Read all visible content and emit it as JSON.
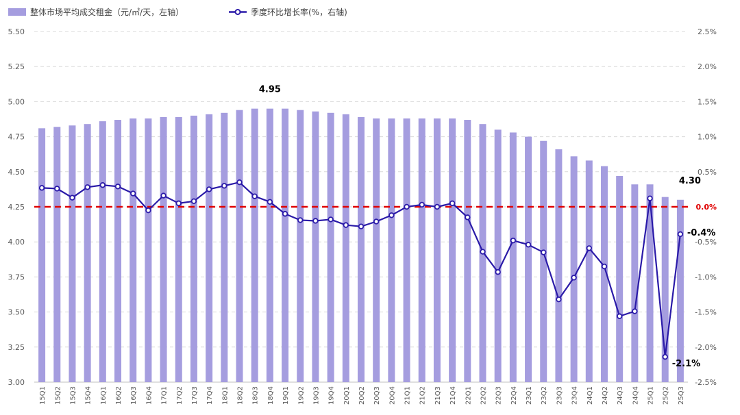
{
  "chart_data": {
    "type": "bar+line",
    "legend": {
      "placement": "top-left",
      "bar_label": "整体市场平均成交租金（元/㎡/天，左轴）",
      "line_label": "季度环比增长率(%，右轴)"
    },
    "categories": [
      "15Q1",
      "15Q2",
      "15Q3",
      "15Q4",
      "16Q1",
      "16Q2",
      "16Q3",
      "16Q4",
      "17Q1",
      "17Q2",
      "17Q3",
      "17Q4",
      "18Q1",
      "18Q2",
      "18Q3",
      "18Q4",
      "19Q1",
      "19Q2",
      "19Q3",
      "19Q4",
      "20Q1",
      "20Q2",
      "20Q3",
      "20Q4",
      "21Q1",
      "21Q2",
      "21Q3",
      "21Q4",
      "22Q1",
      "22Q2",
      "22Q3",
      "22Q4",
      "23Q1",
      "23Q2",
      "23Q3",
      "23Q4",
      "24Q1",
      "24Q2",
      "24Q3",
      "24Q4",
      "25Q1",
      "25Q2",
      "25Q3"
    ],
    "series": [
      {
        "name": "整体市场平均成交租金（元/㎡/天，左轴）",
        "type": "bar",
        "axis": "left",
        "color": "#a59ddf",
        "values": [
          4.81,
          4.82,
          4.83,
          4.84,
          4.86,
          4.87,
          4.88,
          4.88,
          4.89,
          4.89,
          4.9,
          4.91,
          4.92,
          4.94,
          4.95,
          4.95,
          4.95,
          4.94,
          4.93,
          4.92,
          4.91,
          4.89,
          4.88,
          4.88,
          4.88,
          4.88,
          4.88,
          4.88,
          4.87,
          4.84,
          4.8,
          4.78,
          4.75,
          4.72,
          4.66,
          4.61,
          4.58,
          4.54,
          4.47,
          4.41,
          4.41,
          4.32,
          4.3
        ]
      },
      {
        "name": "季度环比增长率(%，右轴)",
        "type": "line",
        "axis": "right",
        "color": "#2a1aa8",
        "values": [
          0.27,
          0.26,
          0.13,
          0.28,
          0.31,
          0.29,
          0.19,
          -0.05,
          0.16,
          0.05,
          0.08,
          0.25,
          0.3,
          0.35,
          0.15,
          0.07,
          -0.1,
          -0.19,
          -0.2,
          -0.18,
          -0.26,
          -0.28,
          -0.21,
          -0.12,
          0.0,
          0.03,
          0.0,
          0.05,
          -0.15,
          -0.64,
          -0.93,
          -0.48,
          -0.54,
          -0.65,
          -1.32,
          -1.01,
          -0.59,
          -0.85,
          -1.56,
          -1.49,
          0.12,
          -2.14,
          -0.39
        ]
      }
    ],
    "left_axis": {
      "min": 3.0,
      "max": 5.5,
      "step": 0.25,
      "ticks": [
        "3.00",
        "3.25",
        "3.50",
        "3.75",
        "4.00",
        "4.25",
        "4.50",
        "4.75",
        "5.00",
        "5.25",
        "5.50"
      ]
    },
    "right_axis": {
      "min": -2.5,
      "max": 2.5,
      "step": 0.5,
      "ticks": [
        "-2.5%",
        "-2.0%",
        "-1.5%",
        "-1.0%",
        "-0.5%",
        "0.0%",
        "0.5%",
        "1.0%",
        "1.5%",
        "2.0%",
        "2.5%"
      ]
    },
    "reference_line": {
      "value": 0.0,
      "label": "0.0%",
      "color": "#e00000",
      "style": "dashed"
    },
    "annotations": [
      {
        "text": "4.95",
        "series": 0,
        "index": 15
      },
      {
        "text": "4.30",
        "series": 0,
        "index": 42
      },
      {
        "text": "-0.4%",
        "series": 1,
        "index": 42
      },
      {
        "text": "-2.1%",
        "series": 1,
        "index": 41
      }
    ],
    "grid": true
  }
}
